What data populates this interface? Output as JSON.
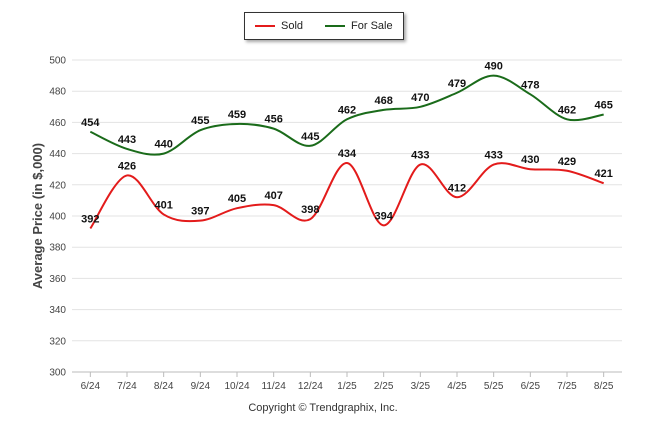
{
  "chart_data": {
    "type": "line",
    "categories": [
      "6/24",
      "7/24",
      "8/24",
      "9/24",
      "10/24",
      "11/24",
      "12/24",
      "1/25",
      "2/25",
      "3/25",
      "4/25",
      "5/25",
      "6/25",
      "7/25",
      "8/25"
    ],
    "series": [
      {
        "name": "Sold",
        "color": "#e31b1b",
        "values": [
          392,
          426,
          401,
          397,
          405,
          407,
          398,
          434,
          394,
          433,
          412,
          433,
          430,
          429,
          421
        ]
      },
      {
        "name": "For Sale",
        "color": "#1a6b1a",
        "values": [
          454,
          443,
          440,
          455,
          459,
          456,
          445,
          462,
          468,
          470,
          479,
          490,
          478,
          462,
          465
        ]
      }
    ],
    "ylabel": "Average Price (in $,000)",
    "xlabel": "",
    "ylim": [
      300,
      500
    ],
    "yticks": [
      300,
      320,
      340,
      360,
      380,
      400,
      420,
      440,
      460,
      480,
      500
    ],
    "grid": true,
    "legend_position": "top-center"
  },
  "footer": {
    "copyright": "Copyright © Trendgraphix, Inc."
  }
}
